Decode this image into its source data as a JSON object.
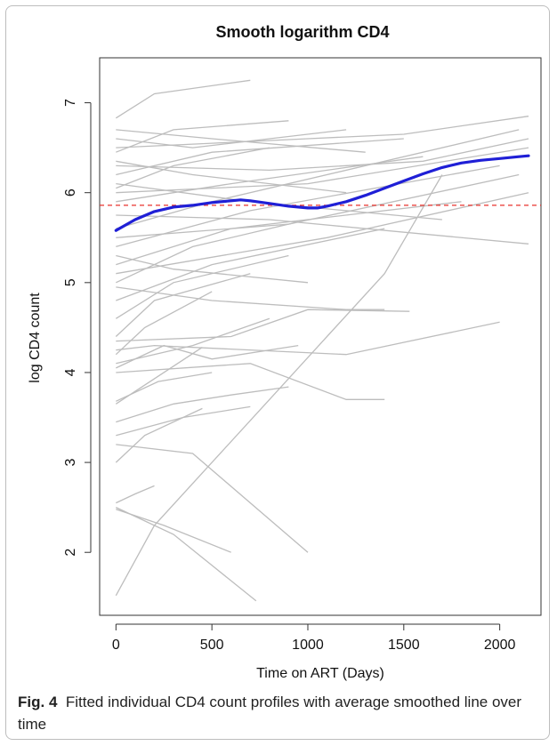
{
  "caption": {
    "label": "Fig. 4",
    "text": "Fitted individual CD4 count profiles with average smoothed line over time"
  },
  "colors": {
    "profiles": "#bdbdbd",
    "smooth": "#1f1fd6",
    "reference": "#e8322c"
  },
  "chart_data": {
    "type": "line",
    "title": "Smooth logarithm CD4",
    "xlabel": "Time on ART (Days)",
    "ylabel": "log CD4 count",
    "xlim": [
      -85,
      2215
    ],
    "ylim": [
      1.3,
      7.5
    ],
    "xticks": [
      0,
      500,
      1000,
      1500,
      2000
    ],
    "yticks": [
      2,
      3,
      4,
      5,
      6,
      7
    ],
    "grid": false,
    "legend": "none",
    "reference_line": {
      "y": 5.86,
      "style": "dashed"
    },
    "smoothed_series": {
      "x": [
        0,
        100,
        200,
        300,
        400,
        500,
        600,
        650,
        700,
        800,
        900,
        1000,
        1050,
        1100,
        1200,
        1300,
        1400,
        1500,
        1600,
        1700,
        1800,
        1900,
        2000,
        2100,
        2150
      ],
      "y": [
        5.58,
        5.7,
        5.79,
        5.84,
        5.86,
        5.89,
        5.91,
        5.92,
        5.91,
        5.88,
        5.85,
        5.83,
        5.83,
        5.85,
        5.9,
        5.97,
        6.05,
        6.13,
        6.21,
        6.28,
        6.33,
        6.36,
        6.38,
        6.4,
        6.41
      ]
    },
    "profile_series": [
      {
        "x": [
          0,
          200,
          700
        ],
        "y": [
          6.83,
          7.1,
          7.25
        ]
      },
      {
        "x": [
          0,
          300,
          900
        ],
        "y": [
          6.45,
          6.7,
          6.8
        ]
      },
      {
        "x": [
          0,
          500,
          1500
        ],
        "y": [
          6.2,
          6.45,
          6.6
        ]
      },
      {
        "x": [
          0,
          400,
          1200
        ],
        "y": [
          6.6,
          6.5,
          6.7
        ]
      },
      {
        "x": [
          0,
          300,
          800
        ],
        "y": [
          6.05,
          6.3,
          6.5
        ]
      },
      {
        "x": [
          0,
          600,
          1600
        ],
        "y": [
          5.9,
          6.1,
          6.4
        ]
      },
      {
        "x": [
          0,
          500,
          2100
        ],
        "y": [
          5.6,
          5.9,
          6.7
        ]
      },
      {
        "x": [
          0,
          700,
          2000
        ],
        "y": [
          5.4,
          5.8,
          6.3
        ]
      },
      {
        "x": [
          0,
          600,
          1800
        ],
        "y": [
          5.2,
          5.6,
          5.9
        ]
      },
      {
        "x": [
          0,
          400,
          1000
        ],
        "y": [
          5.0,
          5.4,
          5.7
        ]
      },
      {
        "x": [
          0,
          500,
          1400
        ],
        "y": [
          4.8,
          5.2,
          5.6
        ]
      },
      {
        "x": [
          0,
          300,
          900
        ],
        "y": [
          4.6,
          5.0,
          5.3
        ]
      },
      {
        "x": [
          0,
          200,
          700
        ],
        "y": [
          4.4,
          4.8,
          5.1
        ]
      },
      {
        "x": [
          0,
          150,
          500
        ],
        "y": [
          4.2,
          4.5,
          4.9
        ]
      },
      {
        "x": [
          0,
          400,
          1200
        ],
        "y": [
          6.35,
          6.2,
          6.0
        ]
      },
      {
        "x": [
          0,
          700,
          1700
        ],
        "y": [
          6.1,
          5.9,
          5.7
        ]
      },
      {
        "x": [
          0,
          800,
          2150
        ],
        "y": [
          5.75,
          5.7,
          5.43
        ]
      },
      {
        "x": [
          0,
          300,
          1000
        ],
        "y": [
          5.3,
          5.15,
          5.0
        ]
      },
      {
        "x": [
          0,
          500,
          1200,
          1400
        ],
        "y": [
          4.95,
          4.8,
          4.7,
          4.7
        ]
      },
      {
        "x": [
          0,
          600,
          1000,
          1530
        ],
        "y": [
          4.35,
          4.4,
          4.7,
          4.68
        ]
      },
      {
        "x": [
          0,
          200,
          1200,
          2000
        ],
        "y": [
          4.25,
          4.3,
          4.2,
          4.56
        ]
      },
      {
        "x": [
          0,
          400,
          800
        ],
        "y": [
          4.1,
          4.3,
          4.6
        ]
      },
      {
        "x": [
          0,
          250,
          500,
          950
        ],
        "y": [
          4.05,
          4.3,
          4.15,
          4.3
        ]
      },
      {
        "x": [
          0,
          700,
          1200,
          1400
        ],
        "y": [
          4.0,
          4.1,
          3.7,
          3.7
        ]
      },
      {
        "x": [
          0,
          450
        ],
        "y": [
          3.65,
          4.28
        ]
      },
      {
        "x": [
          0,
          220,
          500
        ],
        "y": [
          3.68,
          3.9,
          4.0
        ]
      },
      {
        "x": [
          0,
          300,
          600,
          900
        ],
        "y": [
          3.45,
          3.65,
          3.75,
          3.84
        ]
      },
      {
        "x": [
          0,
          350,
          700
        ],
        "y": [
          3.3,
          3.5,
          3.62
        ]
      },
      {
        "x": [
          0,
          150,
          450
        ],
        "y": [
          3.0,
          3.3,
          3.6
        ]
      },
      {
        "x": [
          0,
          400,
          1000
        ],
        "y": [
          3.2,
          3.1,
          2.0
        ]
      },
      {
        "x": [
          0,
          300,
          730
        ],
        "y": [
          2.5,
          2.2,
          1.46
        ]
      },
      {
        "x": [
          0,
          100,
          200
        ],
        "y": [
          2.55,
          2.65,
          2.74
        ]
      },
      {
        "x": [
          0,
          250,
          600
        ],
        "y": [
          2.48,
          2.3,
          2.0
        ]
      },
      {
        "x": [
          0,
          200,
          500,
          800,
          1100,
          1400,
          1700
        ],
        "y": [
          1.52,
          2.3,
          3.0,
          3.7,
          4.4,
          5.1,
          6.2
        ]
      },
      {
        "x": [
          0,
          500,
          1000,
          1500,
          2150
        ],
        "y": [
          6.5,
          6.55,
          6.6,
          6.65,
          6.85
        ]
      },
      {
        "x": [
          0,
          800,
          1600,
          2150
        ],
        "y": [
          6.3,
          6.25,
          6.35,
          6.6
        ]
      },
      {
        "x": [
          0,
          1000,
          2150
        ],
        "y": [
          6.0,
          6.1,
          6.5
        ]
      },
      {
        "x": [
          0,
          900,
          2100
        ],
        "y": [
          5.5,
          5.65,
          6.2
        ]
      },
      {
        "x": [
          0,
          1100,
          2150
        ],
        "y": [
          5.1,
          5.5,
          6.0
        ]
      },
      {
        "x": [
          0,
          500,
          1300
        ],
        "y": [
          6.7,
          6.6,
          6.45
        ]
      }
    ]
  }
}
